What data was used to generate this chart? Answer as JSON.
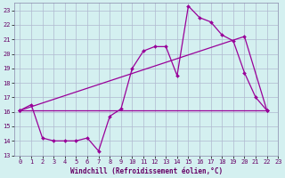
{
  "background_color": "#d4f0f0",
  "grid_color": "#b0b8d0",
  "line_color": "#990099",
  "xlim": [
    -0.5,
    23
  ],
  "ylim": [
    13,
    23.5
  ],
  "xticks": [
    0,
    1,
    2,
    3,
    4,
    5,
    6,
    7,
    8,
    9,
    10,
    11,
    12,
    13,
    14,
    15,
    16,
    17,
    18,
    19,
    20,
    21,
    22,
    23
  ],
  "yticks": [
    13,
    14,
    15,
    16,
    17,
    18,
    19,
    20,
    21,
    22,
    23
  ],
  "xlabel": "Windchill (Refroidissement éolien,°C)",
  "line1_x": [
    0,
    1,
    2,
    3,
    4,
    5,
    6,
    7,
    8,
    9,
    10,
    11,
    12,
    13,
    14,
    15,
    16,
    17,
    18,
    19,
    20,
    21,
    22
  ],
  "line1_y": [
    16.1,
    16.5,
    14.2,
    14.0,
    14.0,
    14.0,
    14.2,
    13.3,
    15.7,
    16.2,
    19.0,
    20.2,
    20.5,
    20.5,
    18.5,
    23.3,
    22.5,
    22.2,
    21.3,
    20.9,
    18.7,
    17.0,
    16.1
  ],
  "line2_x": [
    0,
    20,
    22
  ],
  "line2_y": [
    16.1,
    21.2,
    16.1
  ],
  "line3_x": [
    0,
    22
  ],
  "line3_y": [
    16.1,
    16.1
  ]
}
